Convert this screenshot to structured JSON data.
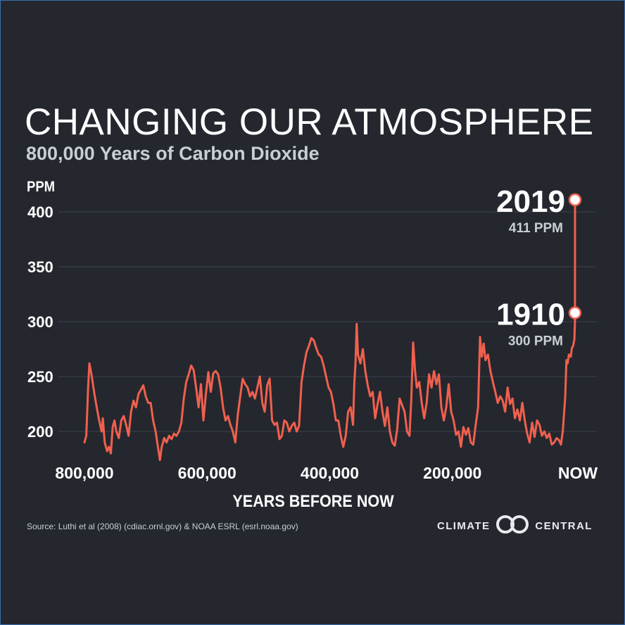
{
  "title": "CHANGING OUR ATMOSPHERE",
  "subtitle": "800,000 Years of Carbon Dioxide",
  "source": "Source: Luthi et al (2008) (cdiac.ornl.gov) & NOAA ESRL (esrl.noaa.gov)",
  "logo": {
    "left": "CLIMATE",
    "right": "CENTRAL",
    "icon": "interlocking-rings-icon"
  },
  "colors": {
    "background": "#24272e",
    "line": "#f0604e",
    "grid": "#3c4049",
    "text": "#ffffff",
    "muted": "#c9ced6"
  },
  "chart_data": {
    "type": "line",
    "title": "CHANGING OUR ATMOSPHERE",
    "subtitle": "800,000 Years of Carbon Dioxide",
    "xlabel": "YEARS BEFORE NOW",
    "ylabel": "PPM",
    "xlim": [
      800000,
      0
    ],
    "ylim": [
      178,
      420
    ],
    "x_ticks": [
      800000,
      600000,
      400000,
      200000,
      0
    ],
    "x_tick_labels": [
      "800,000",
      "600,000",
      "400,000",
      "200,000",
      "NOW"
    ],
    "y_ticks": [
      200,
      250,
      300,
      350,
      400
    ],
    "grid": true,
    "series": [
      {
        "color": "#f0604e",
        "points": [
          [
            800000,
            190
          ],
          [
            797000,
            196
          ],
          [
            794000,
            240
          ],
          [
            792000,
            262
          ],
          [
            788000,
            250
          ],
          [
            784000,
            235
          ],
          [
            780000,
            222
          ],
          [
            776000,
            210
          ],
          [
            772000,
            200
          ],
          [
            770000,
            212
          ],
          [
            767000,
            190
          ],
          [
            763000,
            182
          ],
          [
            760000,
            186
          ],
          [
            757000,
            180
          ],
          [
            754000,
            204
          ],
          [
            751000,
            210
          ],
          [
            748000,
            200
          ],
          [
            744000,
            194
          ],
          [
            740000,
            210
          ],
          [
            736000,
            214
          ],
          [
            732000,
            206
          ],
          [
            728000,
            196
          ],
          [
            724000,
            218
          ],
          [
            720000,
            228
          ],
          [
            716000,
            222
          ],
          [
            712000,
            234
          ],
          [
            708000,
            238
          ],
          [
            704000,
            242
          ],
          [
            700000,
            232
          ],
          [
            696000,
            226
          ],
          [
            692000,
            226
          ],
          [
            688000,
            210
          ],
          [
            684000,
            200
          ],
          [
            680000,
            185
          ],
          [
            677000,
            174
          ],
          [
            674000,
            186
          ],
          [
            670000,
            194
          ],
          [
            666000,
            190
          ],
          [
            662000,
            196
          ],
          [
            658000,
            193
          ],
          [
            654000,
            198
          ],
          [
            650000,
            196
          ],
          [
            646000,
            200
          ],
          [
            642000,
            208
          ],
          [
            638000,
            230
          ],
          [
            634000,
            245
          ],
          [
            630000,
            252
          ],
          [
            626000,
            260
          ],
          [
            622000,
            256
          ],
          [
            618000,
            240
          ],
          [
            614000,
            222
          ],
          [
            610000,
            243
          ],
          [
            606000,
            210
          ],
          [
            602000,
            234
          ],
          [
            598000,
            254
          ],
          [
            594000,
            236
          ],
          [
            590000,
            253
          ],
          [
            586000,
            255
          ],
          [
            582000,
            252
          ],
          [
            578000,
            240
          ],
          [
            574000,
            222
          ],
          [
            570000,
            210
          ],
          [
            566000,
            214
          ],
          [
            562000,
            206
          ],
          [
            558000,
            200
          ],
          [
            554000,
            190
          ],
          [
            550000,
            215
          ],
          [
            546000,
            232
          ],
          [
            542000,
            248
          ],
          [
            538000,
            243
          ],
          [
            534000,
            240
          ],
          [
            530000,
            232
          ],
          [
            526000,
            236
          ],
          [
            522000,
            230
          ],
          [
            518000,
            240
          ],
          [
            514000,
            250
          ],
          [
            510000,
            226
          ],
          [
            506000,
            218
          ],
          [
            502000,
            242
          ],
          [
            498000,
            248
          ],
          [
            494000,
            210
          ],
          [
            490000,
            206
          ],
          [
            486000,
            208
          ],
          [
            482000,
            193
          ],
          [
            478000,
            196
          ],
          [
            474000,
            210
          ],
          [
            470000,
            208
          ],
          [
            466000,
            200
          ],
          [
            462000,
            205
          ],
          [
            458000,
            208
          ],
          [
            454000,
            200
          ],
          [
            450000,
            205
          ],
          [
            446000,
            245
          ],
          [
            442000,
            260
          ],
          [
            438000,
            272
          ],
          [
            434000,
            278
          ],
          [
            430000,
            285
          ],
          [
            426000,
            283
          ],
          [
            422000,
            276
          ],
          [
            418000,
            270
          ],
          [
            414000,
            268
          ],
          [
            410000,
            260
          ],
          [
            406000,
            250
          ],
          [
            402000,
            240
          ],
          [
            398000,
            236
          ],
          [
            394000,
            225
          ],
          [
            390000,
            210
          ],
          [
            386000,
            210
          ],
          [
            382000,
            196
          ],
          [
            378000,
            186
          ],
          [
            374000,
            196
          ],
          [
            370000,
            218
          ],
          [
            366000,
            222
          ],
          [
            362000,
            206
          ],
          [
            360000,
            244
          ],
          [
            358000,
            262
          ],
          [
            356000,
            298
          ],
          [
            354000,
            270
          ],
          [
            350000,
            262
          ],
          [
            346000,
            275
          ],
          [
            342000,
            255
          ],
          [
            338000,
            242
          ],
          [
            334000,
            232
          ],
          [
            330000,
            236
          ],
          [
            326000,
            212
          ],
          [
            322000,
            225
          ],
          [
            318000,
            236
          ],
          [
            314000,
            218
          ],
          [
            310000,
            205
          ],
          [
            306000,
            222
          ],
          [
            302000,
            200
          ],
          [
            298000,
            190
          ],
          [
            294000,
            187
          ],
          [
            290000,
            202
          ],
          [
            286000,
            230
          ],
          [
            282000,
            224
          ],
          [
            278000,
            218
          ],
          [
            274000,
            200
          ],
          [
            270000,
            196
          ],
          [
            267000,
            230
          ],
          [
            264000,
            281
          ],
          [
            261000,
            256
          ],
          [
            258000,
            240
          ],
          [
            254000,
            245
          ],
          [
            250000,
            226
          ],
          [
            246000,
            212
          ],
          [
            242000,
            226
          ],
          [
            238000,
            252
          ],
          [
            234000,
            240
          ],
          [
            230000,
            255
          ],
          [
            226000,
            243
          ],
          [
            222000,
            252
          ],
          [
            218000,
            222
          ],
          [
            214000,
            210
          ],
          [
            210000,
            222
          ],
          [
            206000,
            243
          ],
          [
            202000,
            218
          ],
          [
            198000,
            210
          ],
          [
            194000,
            197
          ],
          [
            190000,
            200
          ],
          [
            186000,
            186
          ],
          [
            182000,
            204
          ],
          [
            178000,
            197
          ],
          [
            174000,
            203
          ],
          [
            170000,
            190
          ],
          [
            166000,
            188
          ],
          [
            162000,
            206
          ],
          [
            158000,
            222
          ],
          [
            155000,
            286
          ],
          [
            152000,
            268
          ],
          [
            149000,
            280
          ],
          [
            146000,
            265
          ],
          [
            142000,
            270
          ],
          [
            138000,
            255
          ],
          [
            134000,
            245
          ],
          [
            130000,
            236
          ],
          [
            126000,
            226
          ],
          [
            122000,
            232
          ],
          [
            118000,
            228
          ],
          [
            114000,
            218
          ],
          [
            110000,
            240
          ],
          [
            106000,
            225
          ],
          [
            102000,
            230
          ],
          [
            98000,
            212
          ],
          [
            94000,
            220
          ],
          [
            90000,
            210
          ],
          [
            86000,
            226
          ],
          [
            82000,
            210
          ],
          [
            78000,
            198
          ],
          [
            74000,
            190
          ],
          [
            70000,
            208
          ],
          [
            66000,
            195
          ],
          [
            62000,
            210
          ],
          [
            58000,
            206
          ],
          [
            54000,
            196
          ],
          [
            50000,
            200
          ],
          [
            46000,
            194
          ],
          [
            42000,
            198
          ],
          [
            38000,
            188
          ],
          [
            34000,
            190
          ],
          [
            30000,
            194
          ],
          [
            26000,
            192
          ],
          [
            23000,
            188
          ],
          [
            20000,
            200
          ],
          [
            16000,
            232
          ],
          [
            14000,
            265
          ],
          [
            12000,
            262
          ],
          [
            10000,
            270
          ],
          [
            7000,
            268
          ],
          [
            5000,
            276
          ],
          [
            3000,
            278
          ],
          [
            1000,
            284
          ],
          [
            110,
            300
          ],
          [
            0,
            411
          ]
        ]
      }
    ],
    "annotations": [
      {
        "year_label": "2019",
        "value_label": "411 PPM",
        "x": 0,
        "y": 411
      },
      {
        "year_label": "1910",
        "value_label": "300 PPM",
        "x": 110,
        "y": 308
      }
    ]
  }
}
